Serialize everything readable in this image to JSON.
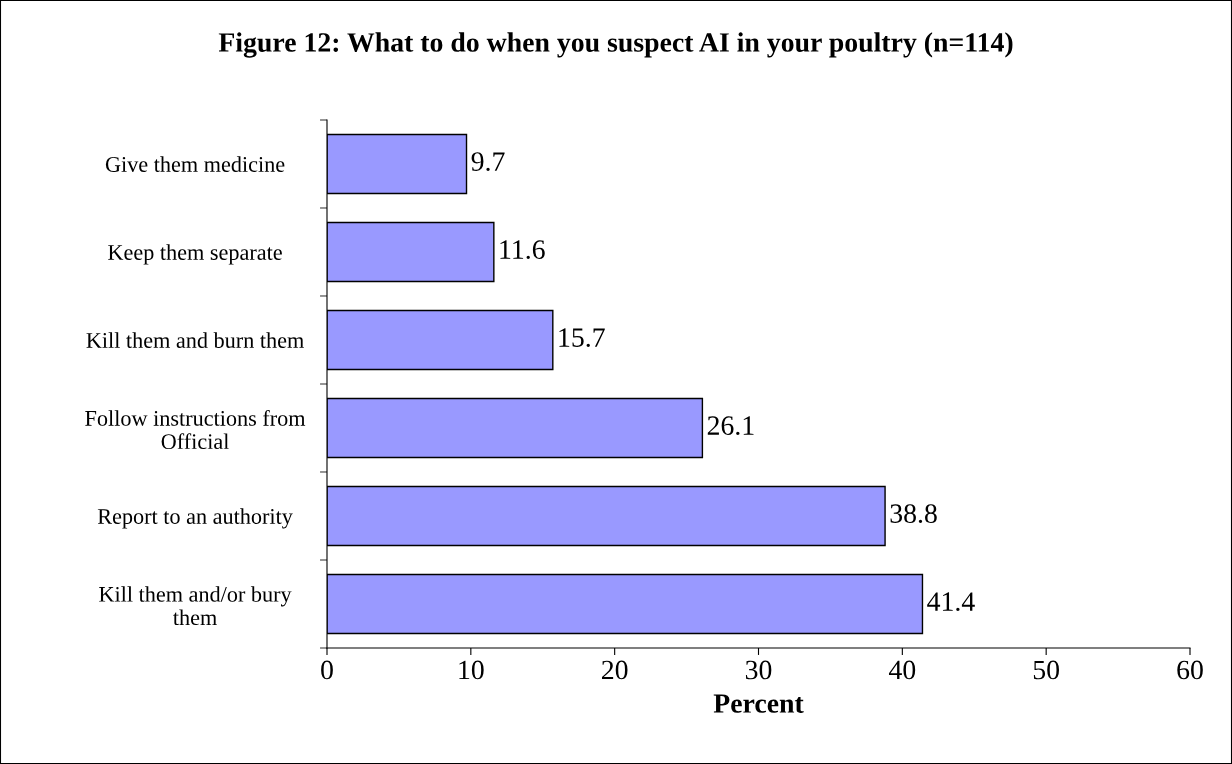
{
  "chart_data": {
    "type": "bar",
    "orientation": "horizontal",
    "title": "Figure 12: What to do when you suspect AI in your poultry (n=114)",
    "categories": [
      "Give them medicine",
      "Keep them separate",
      "Kill them and burn them",
      "Follow instructions from\nOfficial",
      "Report to an authority",
      "Kill them and/or bury\nthem"
    ],
    "values": [
      9.7,
      11.6,
      15.7,
      26.1,
      38.8,
      41.4
    ],
    "color": "#9999ff",
    "xlabel": "Percent",
    "xlim": [
      0,
      60
    ],
    "xticks": [
      0,
      10,
      20,
      30,
      40,
      50,
      60
    ],
    "data_labels": true,
    "grid": false,
    "legend": false
  }
}
